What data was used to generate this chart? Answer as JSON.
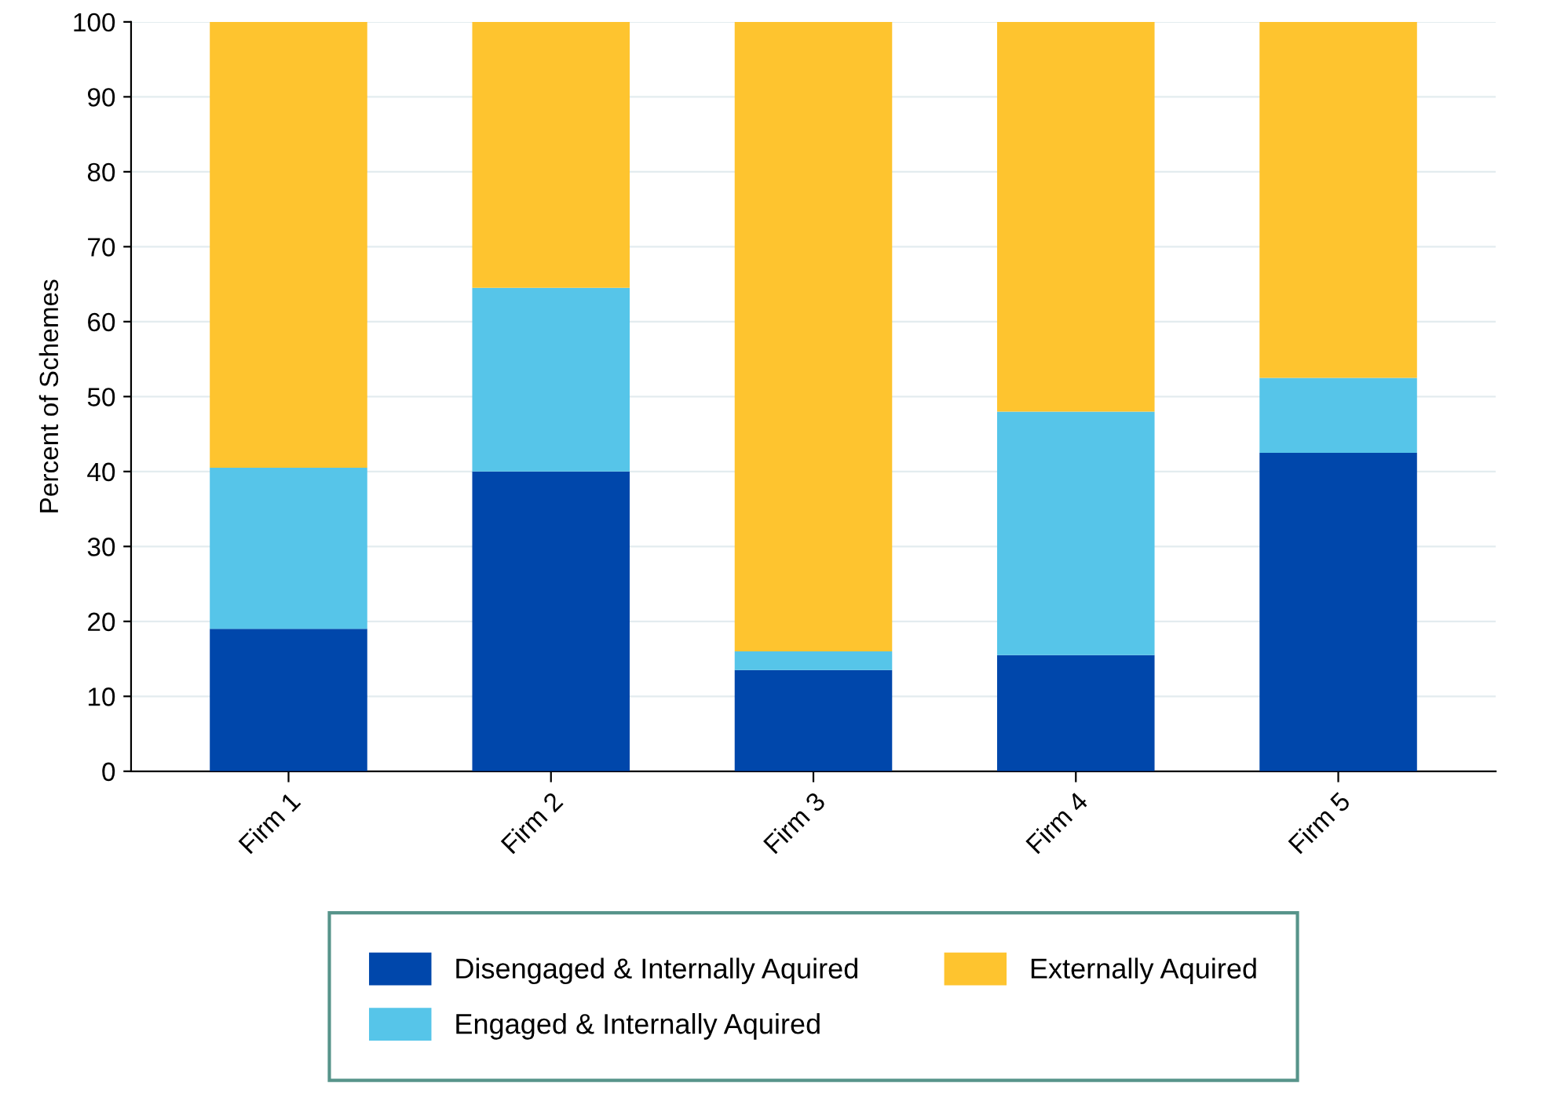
{
  "chart_data": {
    "type": "bar",
    "stacked": true,
    "ylabel": "Percent of Schemes",
    "categories": [
      "Firm 1",
      "Firm 2",
      "Firm 3",
      "Firm 4",
      "Firm 5"
    ],
    "series": [
      {
        "name": "Disengaged & Internally Aquired",
        "color": "#0047ab",
        "values": [
          19,
          40,
          13.5,
          15.5,
          42.5
        ]
      },
      {
        "name": "Engaged & Internally Aquired",
        "color": "#56c5e9",
        "values": [
          21.5,
          24.5,
          2.5,
          32.5,
          10
        ]
      },
      {
        "name": "Externally Aquired",
        "color": "#fec42f",
        "values": [
          59.5,
          35.5,
          84,
          52,
          47.5
        ]
      }
    ],
    "ylim": [
      0,
      100
    ],
    "yticks": [
      0,
      10,
      20,
      30,
      40,
      50,
      60,
      70,
      80,
      90,
      100
    ],
    "grid": "y",
    "legend": "bottom"
  }
}
